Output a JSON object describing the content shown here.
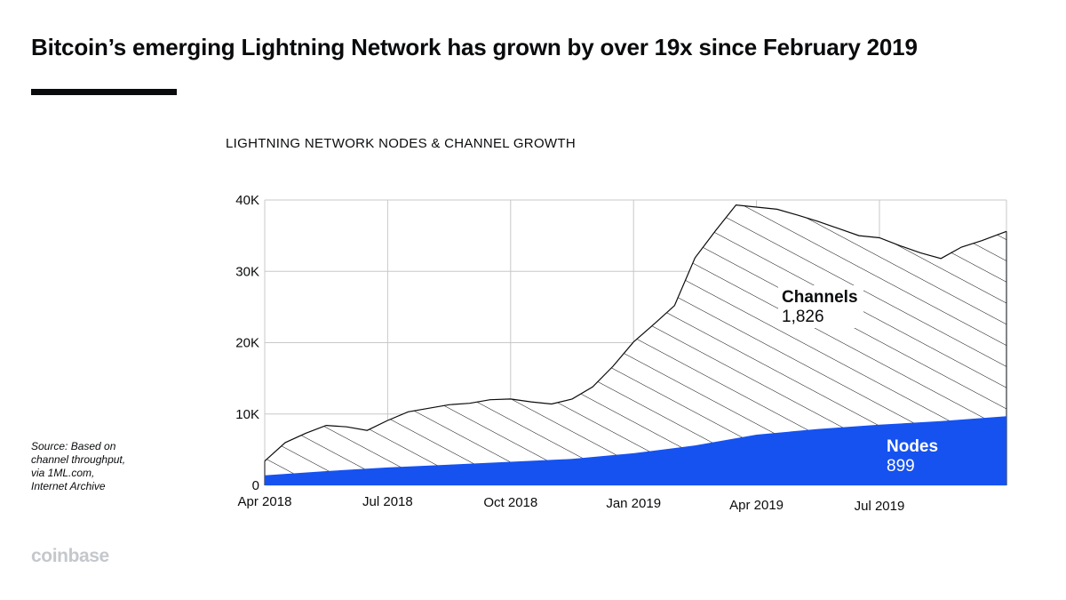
{
  "headline": "Bitcoin’s emerging Lightning Network has grown by over 19x since February 2019",
  "chart_title": "LIGHTNING NETWORK NODES & CHANNEL GROWTH",
  "source": "Source: Based on channel throughput, via 1ML.com, Internet Archive",
  "brand": "coinbase",
  "colors": {
    "nodes": "#1652f0",
    "channels_hatch": "#0a0b0d",
    "grid": "#c8c8c8"
  },
  "chart_data": {
    "type": "area",
    "title": "LIGHTNING NETWORK NODES & CHANNEL GROWTH",
    "xlabel": "",
    "ylabel": "",
    "ylim": [
      0,
      40000
    ],
    "y_ticks": [
      0,
      10000,
      20000,
      30000,
      40000
    ],
    "y_tick_labels": [
      "0",
      "10K",
      "20K",
      "30K",
      "40K"
    ],
    "x_tick_labels": [
      "Apr 2018",
      "Jul 2018",
      "Oct 2018",
      "Jan 2019",
      "Apr 2019",
      "Jul 2019"
    ],
    "grid": true,
    "x_domain": [
      0,
      18.1
    ],
    "series": [
      {
        "name": "Channels",
        "style": "hatched",
        "x": [
          0,
          0.5,
          1.0,
          1.5,
          2.0,
          2.5,
          3.0,
          3.5,
          4.0,
          4.5,
          5.0,
          5.5,
          6.0,
          6.5,
          7.0,
          7.5,
          8.0,
          8.5,
          9.0,
          9.5,
          10.0,
          10.5,
          11.0,
          11.5,
          12.0,
          12.5,
          13.0,
          13.5,
          14.0,
          14.5,
          15.0,
          15.5,
          16.0,
          16.5,
          17.0,
          17.5,
          18.1
        ],
        "values": [
          3400,
          6000,
          7300,
          8400,
          8200,
          7700,
          9100,
          10300,
          10800,
          11300,
          11500,
          12000,
          12100,
          11700,
          11400,
          12100,
          13800,
          16700,
          20100,
          22600,
          25200,
          31900,
          35700,
          39300,
          39000,
          38700,
          37900,
          37000,
          36000,
          35000,
          34700,
          33600,
          32600,
          31800,
          33400,
          34300,
          35600
        ],
        "label_value": "1,826"
      },
      {
        "name": "Nodes",
        "style": "solid",
        "x": [
          0,
          1.5,
          3.0,
          4.5,
          6.0,
          7.5,
          9.0,
          10.5,
          12.0,
          13.5,
          15.0,
          16.5,
          18.1
        ],
        "values": [
          1400,
          2000,
          2500,
          2900,
          3300,
          3700,
          4500,
          5600,
          7100,
          7900,
          8500,
          9000,
          9700
        ],
        "label_value": "899"
      }
    ]
  }
}
